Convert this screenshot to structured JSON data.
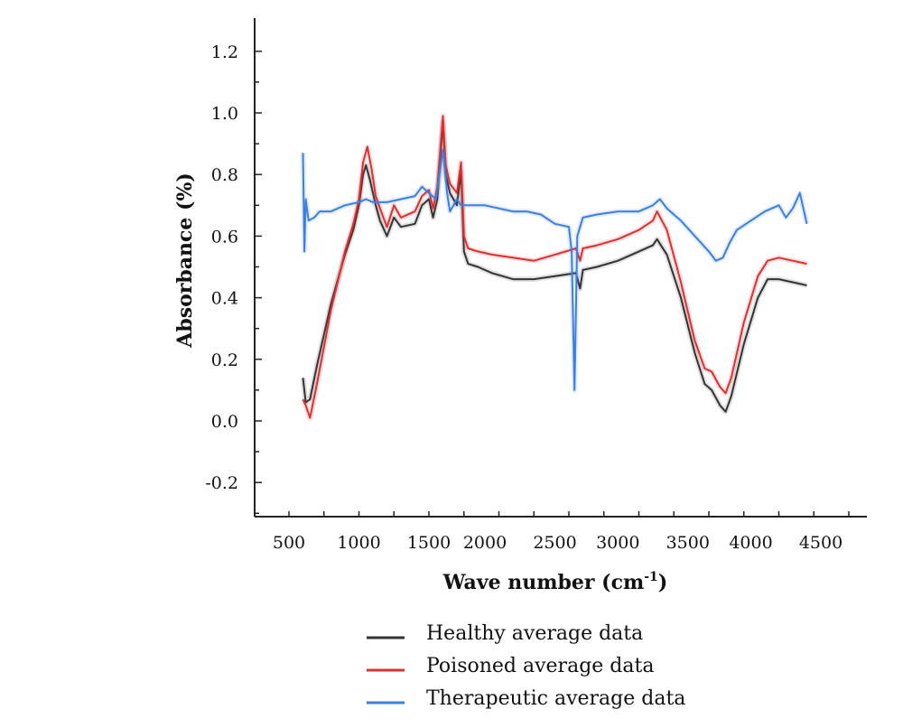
{
  "chart_data": {
    "type": "line",
    "title": "",
    "xlabel": "Wave number (cm",
    "xlabel_sup": "-1",
    "xlabel_close": ")",
    "ylabel": "Absorbance (%)",
    "xlim": [
      200,
      5000
    ],
    "ylim": [
      -0.3,
      1.3
    ],
    "xticks": [
      500,
      1000,
      1500,
      2000,
      2500,
      3000,
      3500,
      4000,
      4500
    ],
    "xtick_labels": [
      "500",
      "1000",
      "1500",
      "2000",
      "2500",
      "3000",
      "3500",
      "4000",
      "4500"
    ],
    "x_label_positions": [
      500,
      1000,
      1500,
      1900,
      2400,
      2850,
      3350,
      3800,
      4300
    ],
    "yticks": [
      -0.2,
      0.0,
      0.2,
      0.4,
      0.6,
      0.8,
      1.0,
      1.2
    ],
    "ytick_labels": [
      "-0.2",
      "0.0",
      "0.2",
      "0.4",
      "0.6",
      "0.8",
      "1.0",
      "1.2"
    ],
    "grid": false,
    "legend_position": "bottom",
    "series": [
      {
        "name": "Healthy average data",
        "color": "#333333",
        "points": [
          [
            600,
            0.14
          ],
          [
            620,
            0.06
          ],
          [
            650,
            0.07
          ],
          [
            700,
            0.18
          ],
          [
            800,
            0.38
          ],
          [
            900,
            0.54
          ],
          [
            960,
            0.62
          ],
          [
            1000,
            0.7
          ],
          [
            1030,
            0.8
          ],
          [
            1050,
            0.83
          ],
          [
            1080,
            0.78
          ],
          [
            1120,
            0.7
          ],
          [
            1150,
            0.65
          ],
          [
            1200,
            0.6
          ],
          [
            1250,
            0.66
          ],
          [
            1300,
            0.63
          ],
          [
            1400,
            0.64
          ],
          [
            1450,
            0.7
          ],
          [
            1500,
            0.72
          ],
          [
            1530,
            0.66
          ],
          [
            1560,
            0.72
          ],
          [
            1600,
            0.97
          ],
          [
            1620,
            0.8
          ],
          [
            1650,
            0.74
          ],
          [
            1700,
            0.7
          ],
          [
            1730,
            0.81
          ],
          [
            1750,
            0.55
          ],
          [
            1780,
            0.51
          ],
          [
            1850,
            0.5
          ],
          [
            1950,
            0.48
          ],
          [
            2100,
            0.46
          ],
          [
            2250,
            0.46
          ],
          [
            2400,
            0.47
          ],
          [
            2550,
            0.48
          ],
          [
            2580,
            0.43
          ],
          [
            2600,
            0.49
          ],
          [
            2700,
            0.5
          ],
          [
            2850,
            0.52
          ],
          [
            3000,
            0.55
          ],
          [
            3100,
            0.57
          ],
          [
            3130,
            0.59
          ],
          [
            3200,
            0.54
          ],
          [
            3300,
            0.4
          ],
          [
            3400,
            0.22
          ],
          [
            3470,
            0.12
          ],
          [
            3520,
            0.1
          ],
          [
            3580,
            0.05
          ],
          [
            3620,
            0.03
          ],
          [
            3660,
            0.08
          ],
          [
            3750,
            0.25
          ],
          [
            3850,
            0.4
          ],
          [
            3920,
            0.46
          ],
          [
            4000,
            0.46
          ],
          [
            4100,
            0.45
          ],
          [
            4200,
            0.44
          ]
        ]
      },
      {
        "name": "Poisoned average data",
        "color": "#dd3030",
        "points": [
          [
            600,
            0.07
          ],
          [
            620,
            0.05
          ],
          [
            650,
            0.01
          ],
          [
            700,
            0.12
          ],
          [
            800,
            0.36
          ],
          [
            900,
            0.55
          ],
          [
            960,
            0.64
          ],
          [
            1000,
            0.72
          ],
          [
            1030,
            0.84
          ],
          [
            1060,
            0.89
          ],
          [
            1090,
            0.82
          ],
          [
            1120,
            0.73
          ],
          [
            1150,
            0.69
          ],
          [
            1200,
            0.63
          ],
          [
            1250,
            0.7
          ],
          [
            1300,
            0.66
          ],
          [
            1400,
            0.68
          ],
          [
            1450,
            0.73
          ],
          [
            1500,
            0.75
          ],
          [
            1530,
            0.69
          ],
          [
            1560,
            0.76
          ],
          [
            1600,
            0.99
          ],
          [
            1620,
            0.83
          ],
          [
            1650,
            0.77
          ],
          [
            1700,
            0.74
          ],
          [
            1730,
            0.84
          ],
          [
            1750,
            0.6
          ],
          [
            1780,
            0.56
          ],
          [
            1850,
            0.55
          ],
          [
            1950,
            0.54
          ],
          [
            2100,
            0.53
          ],
          [
            2250,
            0.52
          ],
          [
            2400,
            0.54
          ],
          [
            2550,
            0.56
          ],
          [
            2580,
            0.52
          ],
          [
            2600,
            0.56
          ],
          [
            2700,
            0.57
          ],
          [
            2850,
            0.59
          ],
          [
            3000,
            0.62
          ],
          [
            3100,
            0.65
          ],
          [
            3130,
            0.68
          ],
          [
            3200,
            0.62
          ],
          [
            3300,
            0.45
          ],
          [
            3400,
            0.26
          ],
          [
            3470,
            0.17
          ],
          [
            3520,
            0.16
          ],
          [
            3580,
            0.11
          ],
          [
            3620,
            0.09
          ],
          [
            3660,
            0.14
          ],
          [
            3750,
            0.32
          ],
          [
            3850,
            0.47
          ],
          [
            3920,
            0.52
          ],
          [
            4000,
            0.53
          ],
          [
            4100,
            0.52
          ],
          [
            4200,
            0.51
          ]
        ]
      },
      {
        "name": "Therapeutic average data",
        "color": "#3c7fe0",
        "points": [
          [
            600,
            0.87
          ],
          [
            610,
            0.55
          ],
          [
            620,
            0.72
          ],
          [
            640,
            0.65
          ],
          [
            680,
            0.66
          ],
          [
            720,
            0.68
          ],
          [
            800,
            0.68
          ],
          [
            900,
            0.7
          ],
          [
            1000,
            0.71
          ],
          [
            1050,
            0.72
          ],
          [
            1100,
            0.71
          ],
          [
            1200,
            0.71
          ],
          [
            1300,
            0.72
          ],
          [
            1400,
            0.73
          ],
          [
            1450,
            0.76
          ],
          [
            1500,
            0.74
          ],
          [
            1550,
            0.72
          ],
          [
            1600,
            0.88
          ],
          [
            1630,
            0.74
          ],
          [
            1650,
            0.68
          ],
          [
            1700,
            0.72
          ],
          [
            1730,
            0.7
          ],
          [
            1800,
            0.7
          ],
          [
            1900,
            0.7
          ],
          [
            2000,
            0.69
          ],
          [
            2100,
            0.68
          ],
          [
            2200,
            0.68
          ],
          [
            2300,
            0.67
          ],
          [
            2400,
            0.64
          ],
          [
            2500,
            0.63
          ],
          [
            2520,
            0.55
          ],
          [
            2540,
            0.1
          ],
          [
            2560,
            0.6
          ],
          [
            2600,
            0.66
          ],
          [
            2700,
            0.67
          ],
          [
            2850,
            0.68
          ],
          [
            3000,
            0.68
          ],
          [
            3100,
            0.7
          ],
          [
            3150,
            0.72
          ],
          [
            3200,
            0.69
          ],
          [
            3300,
            0.65
          ],
          [
            3400,
            0.6
          ],
          [
            3500,
            0.55
          ],
          [
            3550,
            0.52
          ],
          [
            3600,
            0.53
          ],
          [
            3650,
            0.58
          ],
          [
            3700,
            0.62
          ],
          [
            3800,
            0.65
          ],
          [
            3900,
            0.68
          ],
          [
            4000,
            0.7
          ],
          [
            4050,
            0.66
          ],
          [
            4100,
            0.69
          ],
          [
            4150,
            0.74
          ],
          [
            4200,
            0.64
          ]
        ]
      }
    ]
  }
}
